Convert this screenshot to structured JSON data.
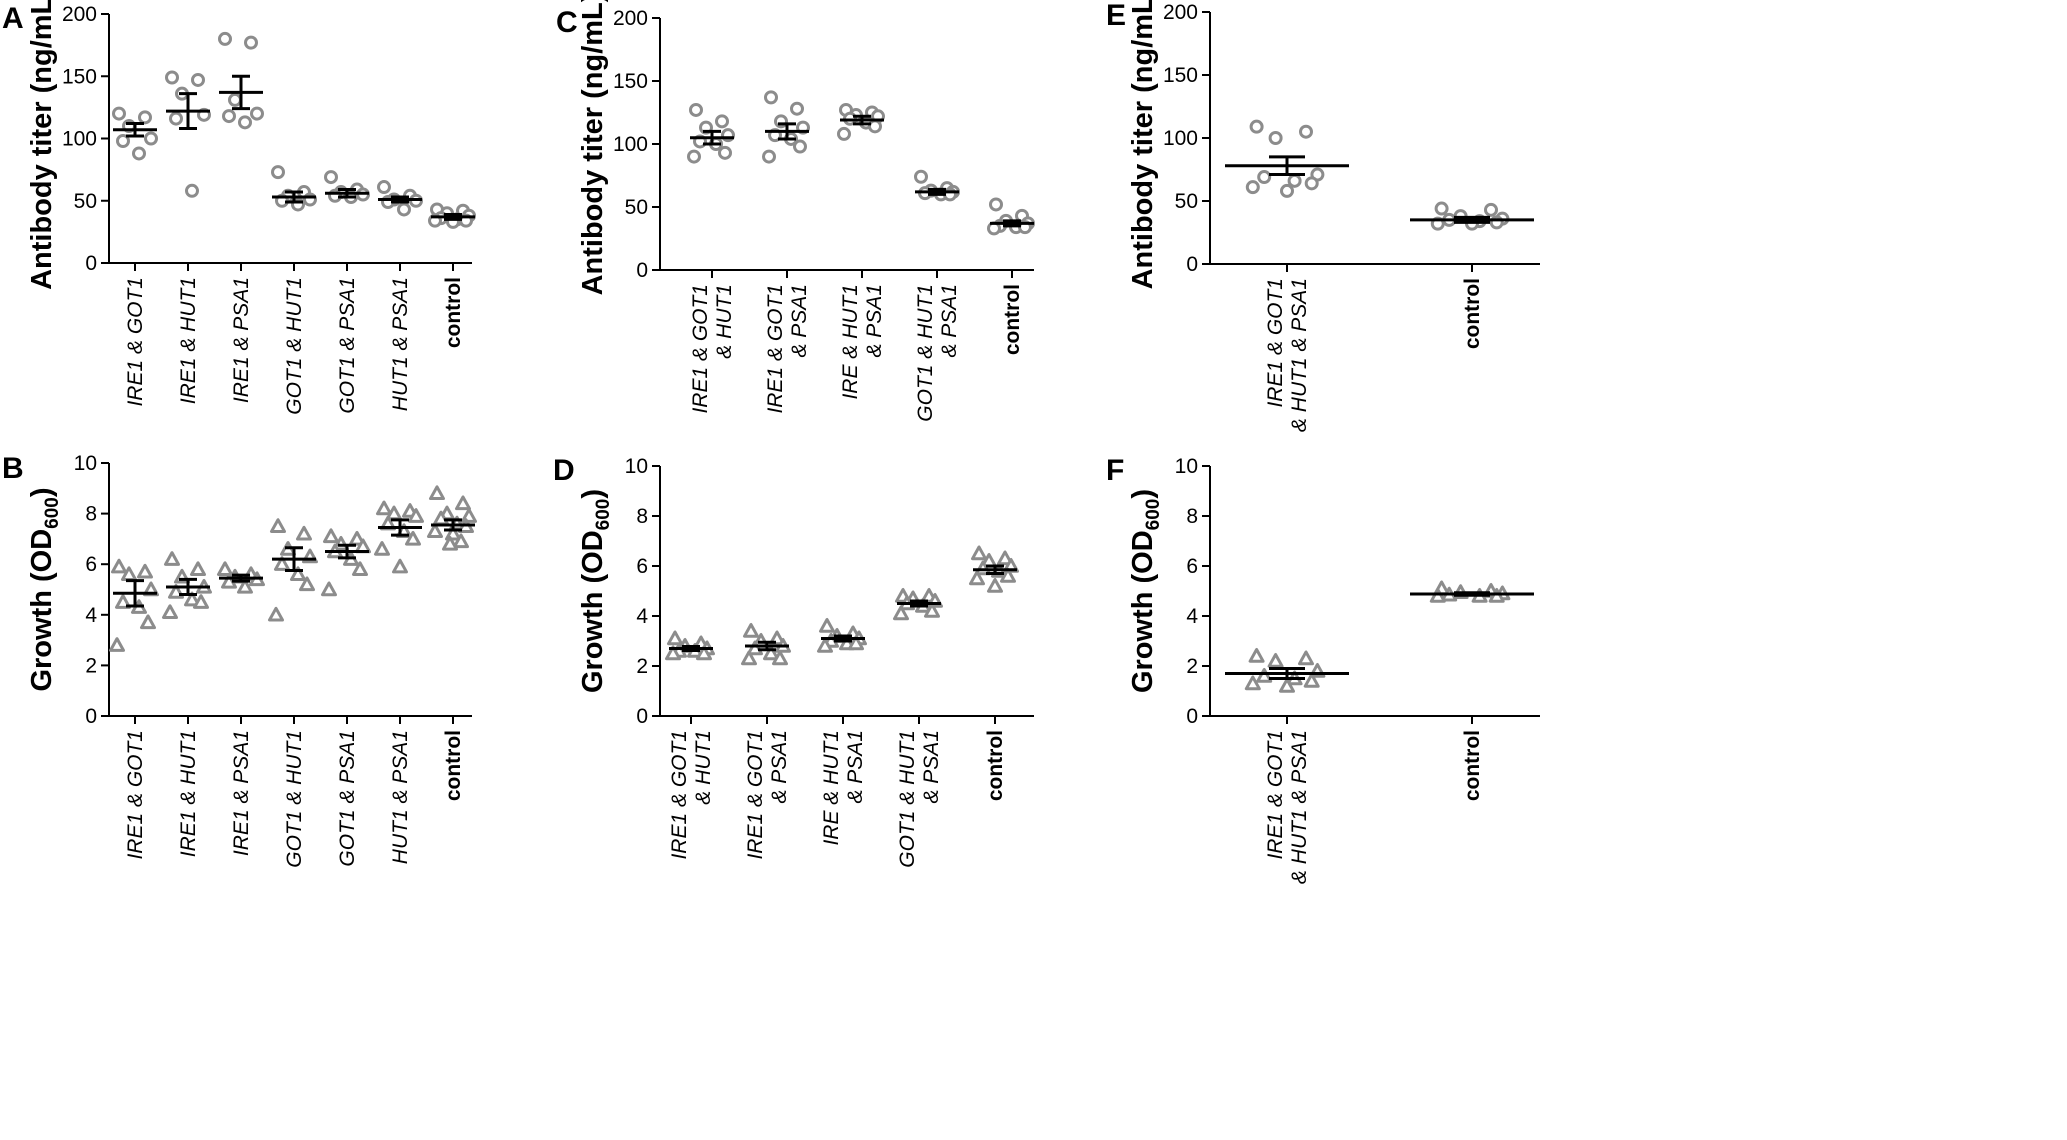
{
  "figure": {
    "description_title": ""
  },
  "colors": {
    "marker": "#8c8c8c",
    "axis": "#000000",
    "bar": "#000000"
  },
  "chart_data": [
    {
      "id": "A",
      "type": "scatter",
      "panel_label": "A",
      "ylabel": "Antibody titer (ng/mL)",
      "ylabel_sub": "",
      "ylim": [
        0,
        200
      ],
      "yticks": [
        0,
        50,
        100,
        150,
        200
      ],
      "marker": "circle",
      "categories": [
        {
          "lines": [
            "IRE1 & GOT1"
          ],
          "style": "italic"
        },
        {
          "lines": [
            "IRE1 & HUT1"
          ],
          "style": "italic"
        },
        {
          "lines": [
            "IRE1 & PSA1"
          ],
          "style": "italic"
        },
        {
          "lines": [
            "GOT1 & HUT1"
          ],
          "style": "italic"
        },
        {
          "lines": [
            "GOT1 & PSA1"
          ],
          "style": "italic"
        },
        {
          "lines": [
            "HUT1 & PSA1"
          ],
          "style": "italic"
        },
        {
          "lines": [
            "control"
          ],
          "style": "bold"
        }
      ],
      "groups": [
        {
          "mean": 107,
          "sem": 5,
          "points": [
            120,
            117,
            110,
            100,
            98,
            88
          ]
        },
        {
          "mean": 122,
          "sem": 14,
          "points": [
            149,
            147,
            136,
            119,
            116,
            58
          ]
        },
        {
          "mean": 137,
          "sem": 13,
          "points": [
            180,
            177,
            131,
            120,
            118,
            113
          ]
        },
        {
          "mean": 53,
          "sem": 4,
          "points": [
            73,
            57,
            54,
            51,
            50,
            47
          ]
        },
        {
          "mean": 56,
          "sem": 3,
          "points": [
            69,
            59,
            57,
            55,
            54,
            53
          ]
        },
        {
          "mean": 51,
          "sem": 2,
          "points": [
            61,
            54,
            51,
            50,
            49,
            43
          ]
        },
        {
          "mean": 37,
          "sem": 2,
          "points": [
            43,
            42,
            40,
            38,
            36,
            35,
            34,
            34,
            33
          ]
        }
      ]
    },
    {
      "id": "C",
      "type": "scatter",
      "panel_label": "C",
      "ylabel": "Antibody titer (ng/mL)",
      "ylabel_sub": "",
      "ylim": [
        0,
        200
      ],
      "yticks": [
        0,
        50,
        100,
        150,
        200
      ],
      "marker": "circle",
      "categories": [
        {
          "lines": [
            "IRE1 & GOT1",
            "& HUT1"
          ],
          "style": "italic"
        },
        {
          "lines": [
            "IRE1 & GOT1",
            "& PSA1"
          ],
          "style": "italic"
        },
        {
          "lines": [
            "IRE & HUT1",
            "& PSA1"
          ],
          "style": "italic"
        },
        {
          "lines": [
            "GOT1 & HUT1",
            "& PSA1"
          ],
          "style": "italic"
        },
        {
          "lines": [
            "control"
          ],
          "style": "bold"
        }
      ],
      "groups": [
        {
          "mean": 105,
          "sem": 5,
          "points": [
            127,
            118,
            113,
            107,
            102,
            100,
            93,
            90
          ]
        },
        {
          "mean": 110,
          "sem": 6,
          "points": [
            137,
            128,
            118,
            113,
            107,
            104,
            98,
            90
          ]
        },
        {
          "mean": 119,
          "sem": 3,
          "points": [
            127,
            125,
            123,
            122,
            120,
            117,
            114,
            108
          ]
        },
        {
          "mean": 62,
          "sem": 2,
          "points": [
            74,
            65,
            63,
            62,
            61,
            60,
            60
          ]
        },
        {
          "mean": 37,
          "sem": 2,
          "points": [
            52,
            43,
            39,
            37,
            35,
            34,
            34,
            33
          ]
        }
      ]
    },
    {
      "id": "E",
      "type": "scatter",
      "panel_label": "E",
      "ylabel": "Antibody titer (ng/mL)",
      "ylabel_sub": "",
      "ylim": [
        0,
        200
      ],
      "yticks": [
        0,
        50,
        100,
        150,
        200
      ],
      "marker": "circle",
      "categories": [
        {
          "lines": [
            "IRE1 & GOT1",
            "& HUT1 & PSA1"
          ],
          "style": "italic"
        },
        {
          "lines": [
            "control"
          ],
          "style": "bold"
        }
      ],
      "groups": [
        {
          "mean": 78,
          "sem": 7,
          "points": [
            109,
            105,
            100,
            71,
            69,
            66,
            64,
            61,
            58
          ]
        },
        {
          "mean": 35,
          "sem": 2,
          "points": [
            44,
            43,
            38,
            36,
            35,
            34,
            33,
            32,
            32
          ]
        }
      ]
    },
    {
      "id": "B",
      "type": "scatter",
      "panel_label": "B",
      "ylabel": "Growth (OD",
      "ylabel_sub": "600",
      "ylim": [
        0,
        10
      ],
      "yticks": [
        0,
        2,
        4,
        6,
        8,
        10
      ],
      "marker": "triangle",
      "categories": [
        {
          "lines": [
            "IRE1 & GOT1"
          ],
          "style": "italic"
        },
        {
          "lines": [
            "IRE1 & HUT1"
          ],
          "style": "italic"
        },
        {
          "lines": [
            "IRE1 & PSA1"
          ],
          "style": "italic"
        },
        {
          "lines": [
            "GOT1 & HUT1"
          ],
          "style": "italic"
        },
        {
          "lines": [
            "GOT1 & PSA1"
          ],
          "style": "italic"
        },
        {
          "lines": [
            "HUT1 & PSA1"
          ],
          "style": "italic"
        },
        {
          "lines": [
            "control"
          ],
          "style": "bold"
        }
      ],
      "groups": [
        {
          "mean": 4.85,
          "sem": 0.5,
          "points": [
            5.9,
            5.7,
            5.6,
            5.0,
            4.5,
            4.3,
            3.7,
            2.8
          ]
        },
        {
          "mean": 5.1,
          "sem": 0.3,
          "points": [
            6.2,
            5.8,
            5.5,
            5.1,
            4.9,
            4.6,
            4.5,
            4.1
          ]
        },
        {
          "mean": 5.45,
          "sem": 0.12,
          "points": [
            5.8,
            5.6,
            5.5,
            5.4,
            5.3,
            5.1
          ]
        },
        {
          "mean": 6.2,
          "sem": 0.45,
          "points": [
            7.5,
            7.2,
            6.6,
            6.3,
            6.0,
            5.6,
            5.2,
            4.0
          ]
        },
        {
          "mean": 6.5,
          "sem": 0.25,
          "points": [
            7.1,
            7.0,
            6.8,
            6.7,
            6.5,
            6.2,
            5.8,
            5.0
          ]
        },
        {
          "mean": 7.45,
          "sem": 0.3,
          "points": [
            8.2,
            8.1,
            8.0,
            7.9,
            7.6,
            7.3,
            7.0,
            6.6,
            5.9
          ]
        },
        {
          "mean": 7.55,
          "sem": 0.2,
          "points": [
            8.8,
            8.4,
            8.0,
            7.9,
            7.8,
            7.6,
            7.5,
            7.3,
            7.2,
            6.9,
            6.8
          ]
        }
      ]
    },
    {
      "id": "D",
      "type": "scatter",
      "panel_label": "D",
      "ylabel": "Growth (OD",
      "ylabel_sub": "600",
      "ylim": [
        0,
        10
      ],
      "yticks": [
        0,
        2,
        4,
        6,
        8,
        10
      ],
      "marker": "triangle",
      "categories": [
        {
          "lines": [
            "IRE1 & GOT1",
            "& HUT1"
          ],
          "style": "italic"
        },
        {
          "lines": [
            "IRE1 & GOT1",
            "& PSA1"
          ],
          "style": "italic"
        },
        {
          "lines": [
            "IRE & HUT1",
            "& PSA1"
          ],
          "style": "italic"
        },
        {
          "lines": [
            "GOT1 & HUT1",
            "& PSA1"
          ],
          "style": "italic"
        },
        {
          "lines": [
            "control"
          ],
          "style": "bold"
        }
      ],
      "groups": [
        {
          "mean": 2.7,
          "sem": 0.08,
          "points": [
            3.1,
            2.9,
            2.8,
            2.7,
            2.6,
            2.6,
            2.5,
            2.5
          ]
        },
        {
          "mean": 2.8,
          "sem": 0.15,
          "points": [
            3.4,
            3.1,
            3.0,
            2.8,
            2.7,
            2.5,
            2.3,
            2.3
          ]
        },
        {
          "mean": 3.1,
          "sem": 0.1,
          "points": [
            3.6,
            3.3,
            3.2,
            3.1,
            3.0,
            2.9,
            2.9,
            2.8
          ]
        },
        {
          "mean": 4.5,
          "sem": 0.1,
          "points": [
            4.8,
            4.8,
            4.7,
            4.6,
            4.5,
            4.4,
            4.2,
            4.1
          ]
        },
        {
          "mean": 5.85,
          "sem": 0.15,
          "points": [
            6.5,
            6.3,
            6.2,
            6.0,
            5.9,
            5.8,
            5.6,
            5.5,
            5.2
          ]
        }
      ]
    },
    {
      "id": "F",
      "type": "scatter",
      "panel_label": "F",
      "ylabel": "Growth (OD",
      "ylabel_sub": "600",
      "ylim": [
        0,
        10
      ],
      "yticks": [
        0,
        2,
        4,
        6,
        8,
        10
      ],
      "marker": "triangle",
      "categories": [
        {
          "lines": [
            "IRE1 & GOT1",
            "& HUT1 & PSA1"
          ],
          "style": "italic"
        },
        {
          "lines": [
            "control"
          ],
          "style": "bold"
        }
      ],
      "groups": [
        {
          "mean": 1.7,
          "sem": 0.2,
          "points": [
            2.4,
            2.3,
            2.2,
            1.8,
            1.6,
            1.5,
            1.4,
            1.3,
            1.2
          ]
        },
        {
          "mean": 4.88,
          "sem": 0.05,
          "points": [
            5.1,
            5.0,
            4.95,
            4.9,
            4.85,
            4.8,
            4.8,
            4.8
          ]
        }
      ]
    }
  ]
}
